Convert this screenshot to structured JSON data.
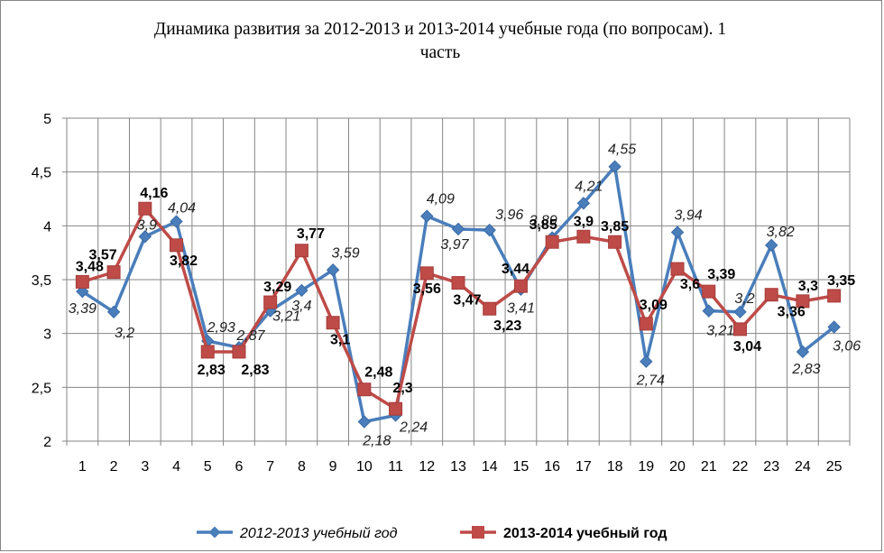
{
  "chart_data": {
    "type": "line",
    "title_line1": "Динамика развития за 2012-2013  и 2013-2014  учебные года (по вопросам). 1",
    "title_line2": "часть",
    "categories": [
      "1",
      "2",
      "3",
      "4",
      "5",
      "6",
      "7",
      "8",
      "9",
      "10",
      "11",
      "12",
      "13",
      "14",
      "15",
      "16",
      "17",
      "18",
      "19",
      "20",
      "21",
      "22",
      "23",
      "24",
      "25"
    ],
    "y_ticks": [
      "2",
      "2,5",
      "3",
      "3,5",
      "4",
      "4,5",
      "5"
    ],
    "ylim": [
      2,
      5
    ],
    "grid": true,
    "legend_position": "bottom",
    "series": [
      {
        "name": "2012-2013 учебный год",
        "color": "#4a7ebb",
        "marker": "diamond",
        "label_style": "italic",
        "values": [
          3.39,
          3.2,
          3.9,
          4.04,
          2.93,
          2.87,
          3.21,
          3.4,
          3.59,
          2.18,
          2.24,
          4.09,
          3.97,
          3.96,
          3.41,
          3.89,
          4.21,
          4.55,
          2.74,
          3.94,
          3.21,
          3.2,
          3.82,
          2.83,
          3.06
        ],
        "labels": [
          "3,39",
          "3,2",
          "3,9",
          "4,04",
          "2,93",
          "2,87",
          "3,21",
          "3,4",
          "3,59",
          "2,18",
          "2,24",
          "4,09",
          "3,97",
          "3,96",
          "3,41",
          "3,89",
          "4,21",
          "4,55",
          "2,74",
          "3,94",
          "3,21",
          "3,2",
          "3,82",
          "2,83",
          "3,06"
        ]
      },
      {
        "name": "2013-2014 учебный год",
        "color": "#be4b48",
        "marker": "square",
        "label_style": "bold",
        "values": [
          3.48,
          3.57,
          4.16,
          3.82,
          2.83,
          2.83,
          3.29,
          3.77,
          3.1,
          2.48,
          2.3,
          3.56,
          3.47,
          3.23,
          3.44,
          3.85,
          3.9,
          3.85,
          3.09,
          3.6,
          3.39,
          3.04,
          3.36,
          3.3,
          3.35
        ],
        "labels": [
          "3,48",
          "3,57",
          "4,16",
          "3,82",
          "2,83",
          "2,83",
          "3,29",
          "3,77",
          "3,1",
          "2,48",
          "2,3",
          "3,56",
          "3,47",
          "3,23",
          "3,44",
          "3,85",
          "3,9",
          "3,85",
          "3,09",
          "3,6",
          "3,39",
          "3,04",
          "3,36",
          "3,3",
          "3,35"
        ]
      }
    ]
  }
}
